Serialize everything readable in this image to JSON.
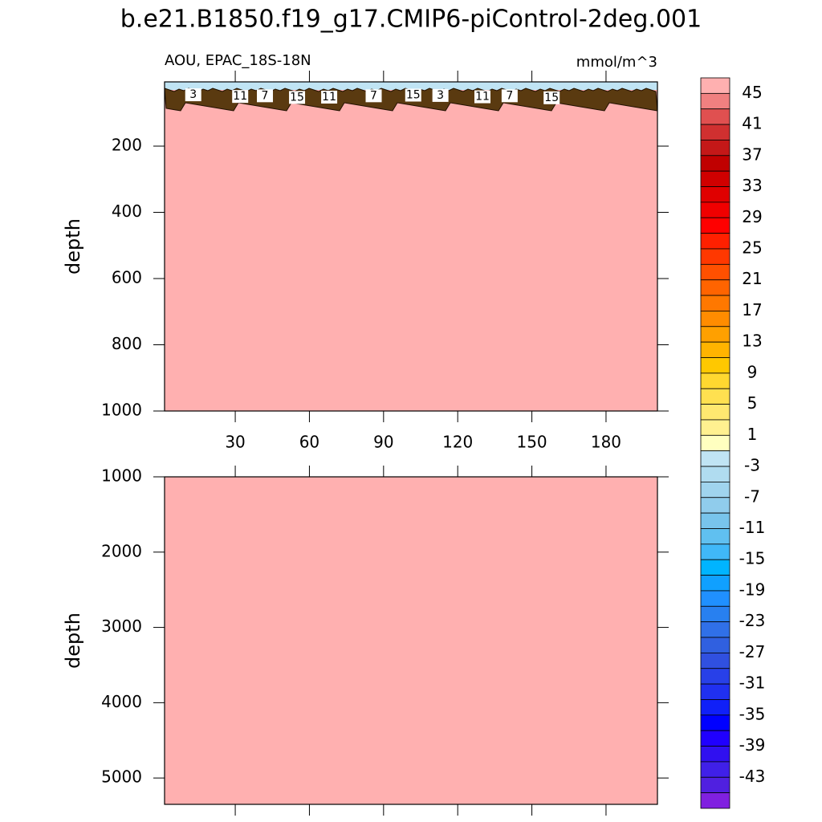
{
  "title": "b.e21.B1850.f19_g17.CMIP6-piControl-2deg.001",
  "chart_data": [
    {
      "type": "contour",
      "subtitle_left": "AOU, EPAC_18S-18N",
      "subtitle_right": "mmol/m^3",
      "ylabel": "depth",
      "xlim": [
        1.4,
        200.8
      ],
      "xticks": [
        30,
        60,
        90,
        120,
        150,
        180
      ],
      "ylim": [
        6,
        1000
      ],
      "yticks": [
        200,
        400,
        600,
        800,
        1000
      ],
      "y_reversed": true,
      "fill_color": "#ffb0b0",
      "contour_labels": {
        "x": [
          13,
          32,
          42,
          55,
          68,
          86,
          102,
          113,
          130,
          141,
          158
        ],
        "y": [
          45,
          50,
          48,
          53,
          52,
          48,
          46,
          47,
          51,
          48,
          54
        ],
        "values": [
          3,
          11,
          7,
          15,
          11,
          7,
          15,
          3,
          11,
          7,
          15
        ]
      }
    },
    {
      "type": "contour",
      "ylabel": "depth",
      "xlim": [
        1.4,
        200.8
      ],
      "ylim": [
        1000,
        5350
      ],
      "yticks": [
        1000,
        2000,
        3000,
        4000,
        5000
      ],
      "y_reversed": true,
      "fill_color": "#ffb0b0"
    }
  ],
  "colorbar": {
    "clim": [
      -47,
      47
    ],
    "labels": [
      45,
      41,
      37,
      33,
      29,
      25,
      21,
      17,
      13,
      9,
      5,
      1,
      -3,
      -7,
      -11,
      -15,
      -19,
      -23,
      -27,
      -31,
      -35,
      -39,
      -43
    ],
    "colors": [
      "#ffb0b0",
      "#f08080",
      "#e05050",
      "#d03030",
      "#c41818",
      "#c00000",
      "#d00000",
      "#e00000",
      "#f00000",
      "#ff0000",
      "#ff2000",
      "#ff3800",
      "#ff5000",
      "#ff6400",
      "#ff7800",
      "#ff8c00",
      "#ffa000",
      "#ffb400",
      "#ffc800",
      "#ffd830",
      "#ffe050",
      "#ffe870",
      "#fff090",
      "#ffffc0",
      "#c0e4f4",
      "#b0dcf0",
      "#a0d4ee",
      "#90ccec",
      "#78c4ec",
      "#60c0f0",
      "#40b8f8",
      "#00b4ff",
      "#10a0ff",
      "#2090ff",
      "#2880f0",
      "#3070e8",
      "#3060e0",
      "#3050e0",
      "#2840e8",
      "#2030f0",
      "#1020f8",
      "#0000ff",
      "#2000ff",
      "#3010f0",
      "#4020e8",
      "#5020e0",
      "#8020e0"
    ]
  }
}
